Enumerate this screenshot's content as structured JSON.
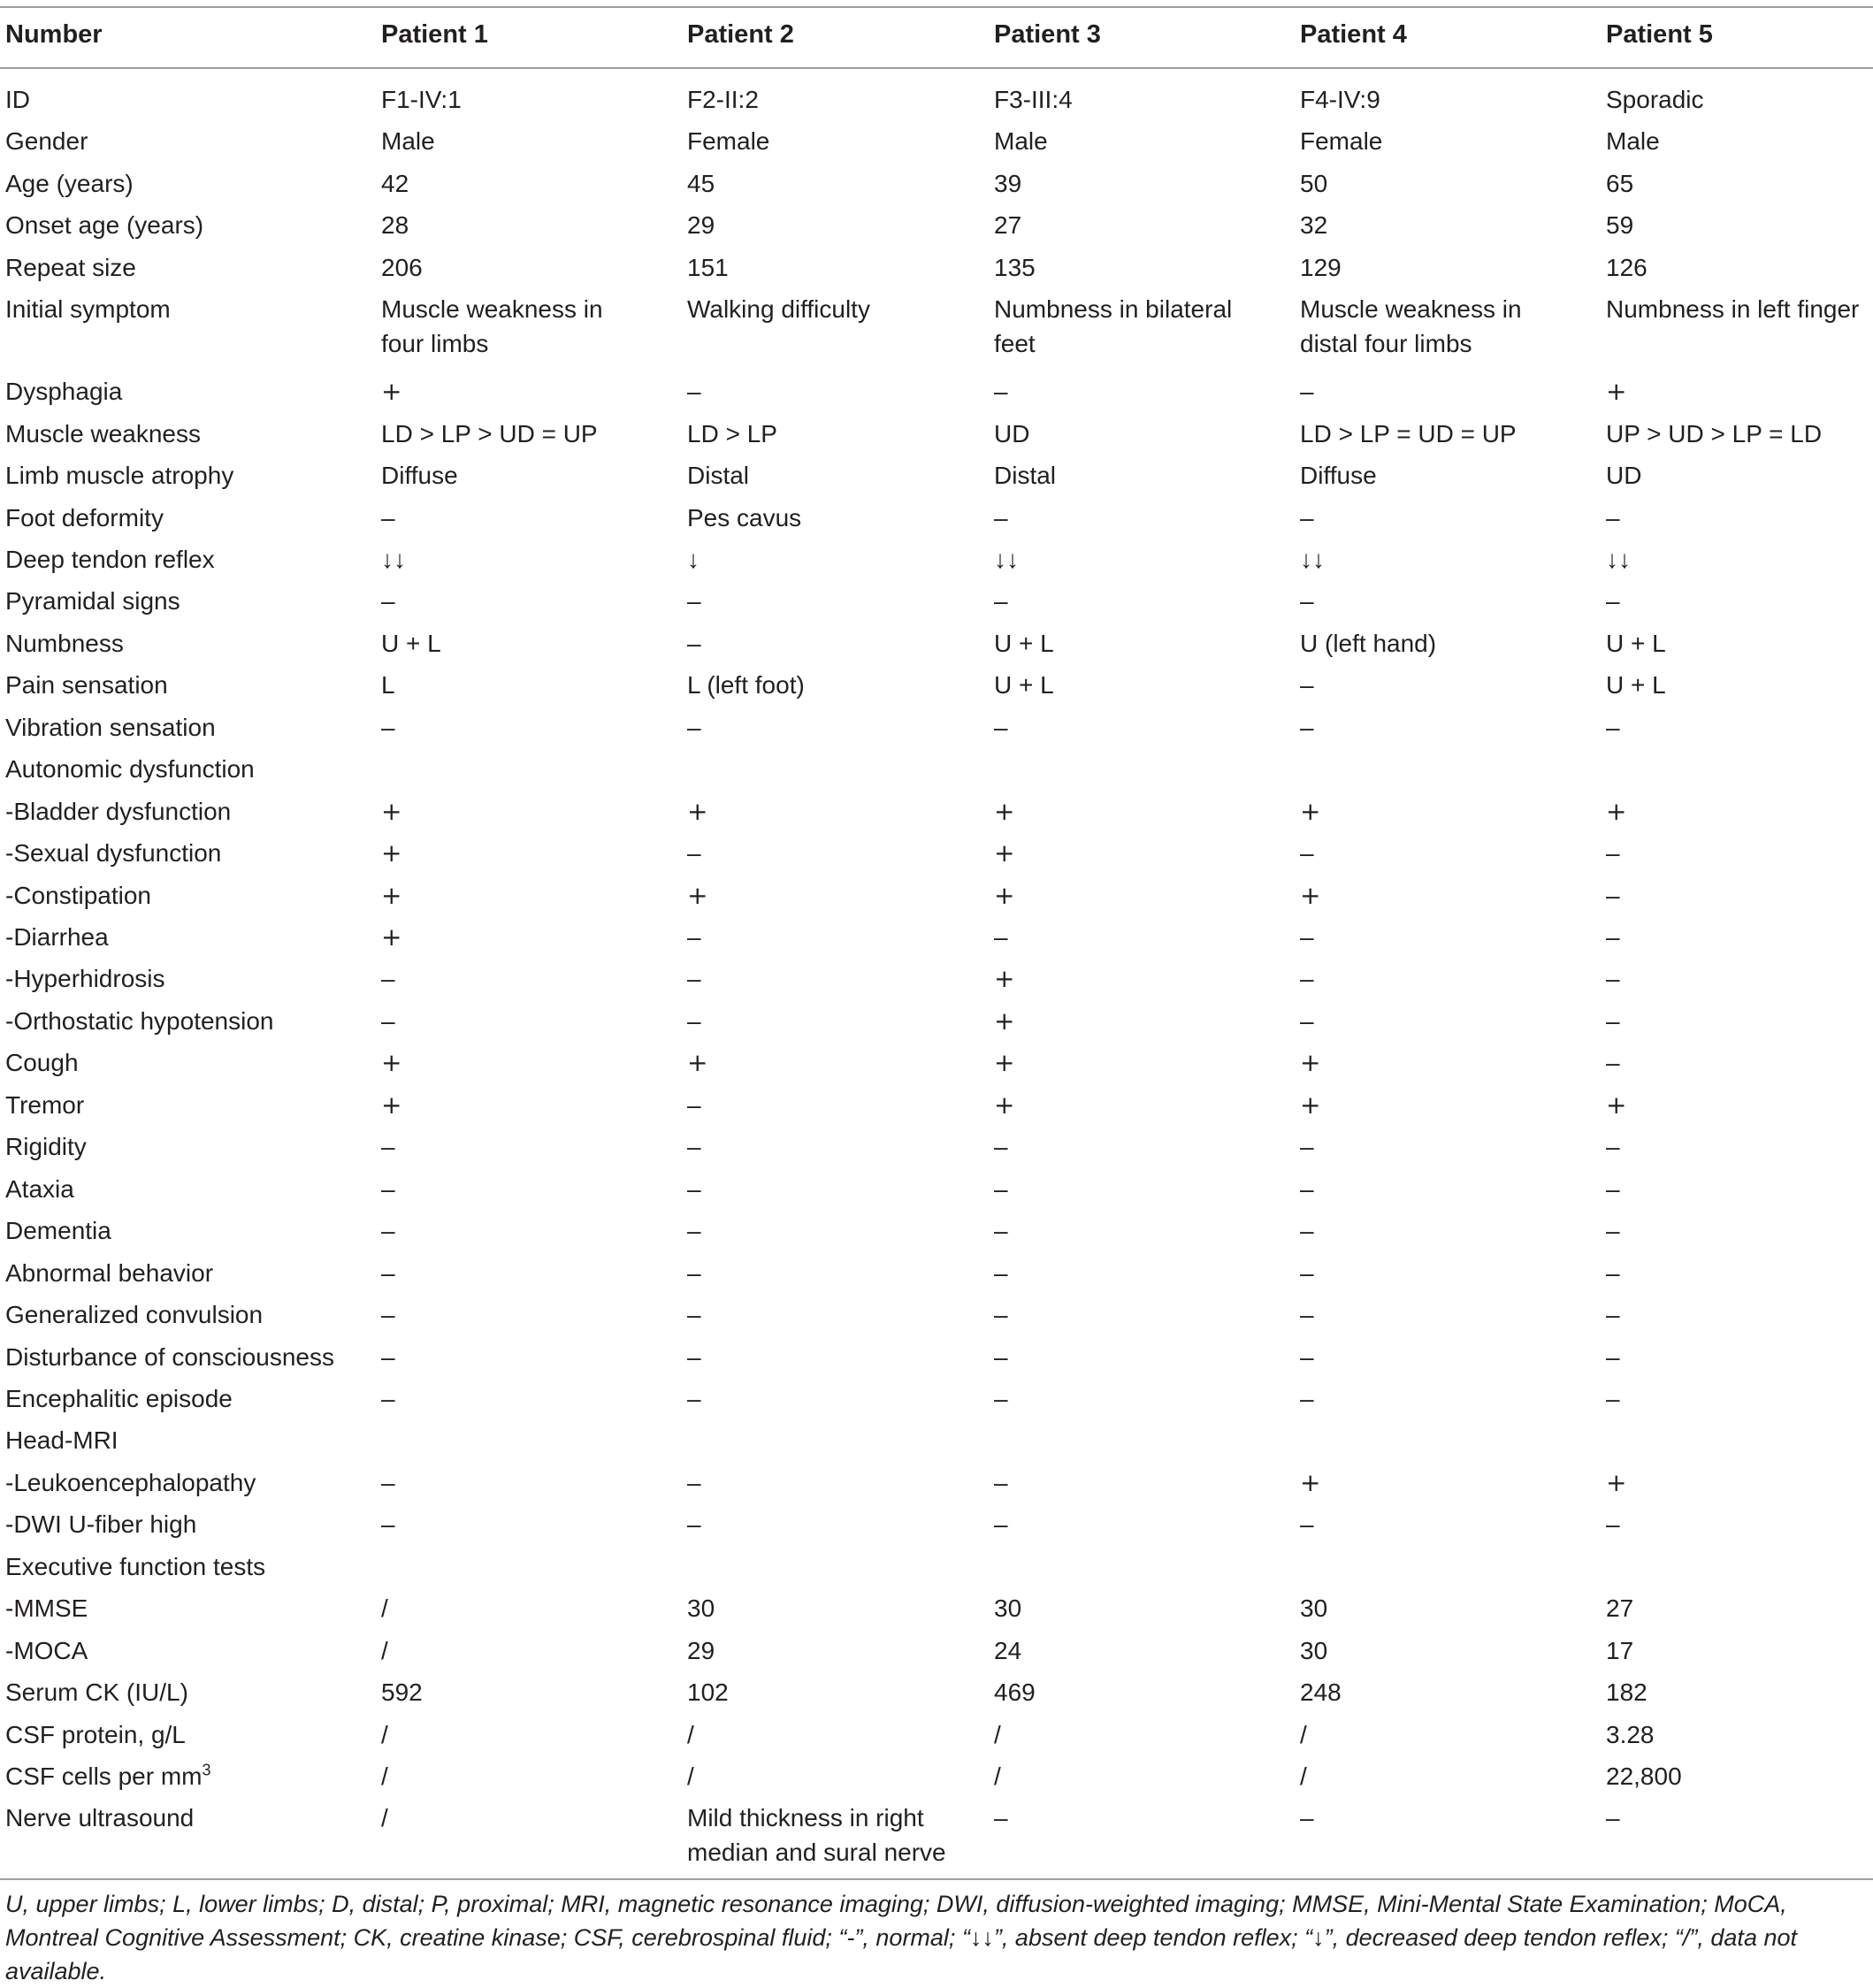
{
  "columns": [
    "Number",
    "Patient 1",
    "Patient 2",
    "Patient 3",
    "Patient 4",
    "Patient 5"
  ],
  "rows": [
    [
      "ID",
      "F1-IV:1",
      "F2-II:2",
      "F3-III:4",
      "F4-IV:9",
      "Sporadic"
    ],
    [
      "Gender",
      "Male",
      "Female",
      "Male",
      "Female",
      "Male"
    ],
    [
      "Age (years)",
      "42",
      "45",
      "39",
      "50",
      "65"
    ],
    [
      "Onset age (years)",
      "28",
      "29",
      "27",
      "32",
      "59"
    ],
    [
      "Repeat size",
      "206",
      "151",
      "135",
      "129",
      "126"
    ],
    [
      "Initial symptom",
      "Muscle weakness in\nfour limbs",
      "Walking difficulty",
      "Numbness in bilateral\nfeet",
      "Muscle weakness in\ndistal four limbs",
      "Numbness in left finger"
    ],
    [
      "Dysphagia",
      "+",
      "–",
      "–",
      "–",
      "+"
    ],
    [
      "Muscle weakness",
      "LD > LP > UD = UP",
      "LD > LP",
      "UD",
      "LD > LP = UD = UP",
      "UP > UD > LP = LD"
    ],
    [
      "Limb muscle atrophy",
      "Diffuse",
      "Distal",
      "Distal",
      "Diffuse",
      "UD"
    ],
    [
      "Foot deformity",
      "–",
      "Pes cavus",
      "–",
      "–",
      "–"
    ],
    [
      "Deep tendon reflex",
      "↓↓",
      "↓",
      "↓↓",
      "↓↓",
      "↓↓"
    ],
    [
      "Pyramidal signs",
      "–",
      "–",
      "–",
      "–",
      "–"
    ],
    [
      "Numbness",
      "U + L",
      "–",
      "U + L",
      "U (left hand)",
      "U + L"
    ],
    [
      "Pain sensation",
      "L",
      "L (left foot)",
      "U + L",
      "–",
      "U + L"
    ],
    [
      "Vibration sensation",
      "–",
      "–",
      "–",
      "–",
      "–"
    ],
    [
      "Autonomic dysfunction",
      "",
      "",
      "",
      "",
      ""
    ],
    [
      "-Bladder dysfunction",
      "+",
      "+",
      "+",
      "+",
      "+"
    ],
    [
      "-Sexual dysfunction",
      "+",
      "–",
      "+",
      "–",
      "–"
    ],
    [
      "-Constipation",
      "+",
      "+",
      "+",
      "+",
      "–"
    ],
    [
      "-Diarrhea",
      "+",
      "–",
      "–",
      "–",
      "–"
    ],
    [
      "-Hyperhidrosis",
      "–",
      "–",
      "+",
      "–",
      "–"
    ],
    [
      "-Orthostatic hypotension",
      "–",
      "–",
      "+",
      "–",
      "–"
    ],
    [
      "Cough",
      "+",
      "+",
      "+",
      "+",
      "–"
    ],
    [
      "Tremor",
      "+",
      "–",
      "+",
      "+",
      "+"
    ],
    [
      "Rigidity",
      "–",
      "–",
      "–",
      "–",
      "–"
    ],
    [
      "Ataxia",
      "–",
      "–",
      "–",
      "–",
      "–"
    ],
    [
      "Dementia",
      "–",
      "–",
      "–",
      "–",
      "–"
    ],
    [
      "Abnormal behavior",
      "–",
      "–",
      "–",
      "–",
      "–"
    ],
    [
      "Generalized convulsion",
      "–",
      "–",
      "–",
      "–",
      "–"
    ],
    [
      "Disturbance of consciousness",
      "–",
      "–",
      "–",
      "–",
      "–"
    ],
    [
      "Encephalitic episode",
      "–",
      "–",
      "–",
      "–",
      "–"
    ],
    [
      "Head-MRI",
      "",
      "",
      "",
      "",
      ""
    ],
    [
      "-Leukoencephalopathy",
      "–",
      "–",
      "–",
      "+",
      "+"
    ],
    [
      "-DWI U-fiber high",
      "–",
      "–",
      "–",
      "–",
      "–"
    ],
    [
      "Executive function tests",
      "",
      "",
      "",
      "",
      ""
    ],
    [
      "-MMSE",
      "/",
      "30",
      "30",
      "30",
      "27"
    ],
    [
      "-MOCA",
      "/",
      "29",
      "24",
      "30",
      "17"
    ],
    [
      "Serum CK (IU/L)",
      "592",
      "102",
      "469",
      "248",
      "182"
    ],
    [
      "CSF protein, g/L",
      "/",
      "/",
      "/",
      "/",
      "3.28"
    ],
    [
      "CSF cells per mm3",
      "/",
      "/",
      "/",
      "/",
      "22,800"
    ],
    [
      "Nerve ultrasound",
      "/",
      "Mild thickness in right\nmedian and sural nerve",
      "–",
      "–",
      "–"
    ]
  ],
  "footnote": "U, upper limbs; L, lower limbs; D, distal; P, proximal; MRI, magnetic resonance imaging; DWI, diffusion-weighted imaging; MMSE, Mini-Mental State Examination; MoCA, Montreal Cognitive Assessment; CK, creatine kinase; CSF, cerebrospinal fluid; “-”, normal; “↓↓”, absent deep tendon reflex; “↓”, decreased deep tendon reflex; “/”, data not available."
}
